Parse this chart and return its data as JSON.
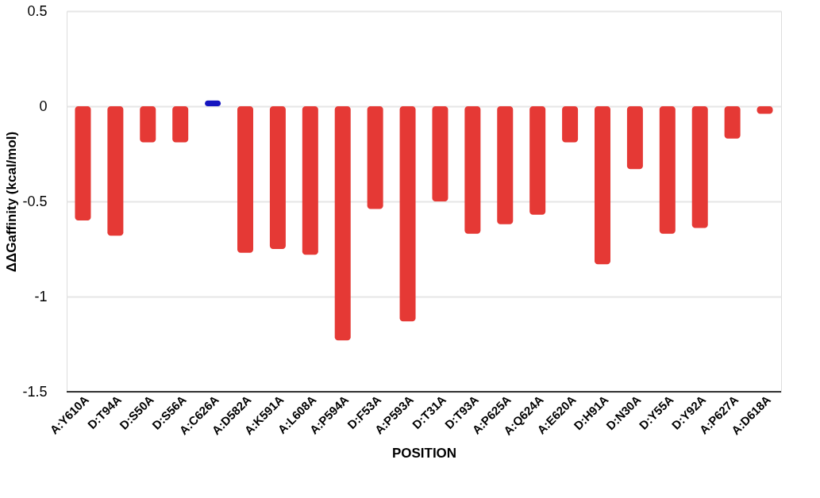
{
  "chart_data": {
    "type": "bar",
    "xlabel": "POSITION",
    "ylabel": "ΔΔGaffinity (kcal/mol)",
    "categories": [
      "A:Y610A",
      "D:T94A",
      "D:S50A",
      "D:S56A",
      "A:C626A",
      "A:D582A",
      "A:K591A",
      "A:L608A",
      "A:P594A",
      "D:F53A",
      "A:P593A",
      "D:T31A",
      "D:T93A",
      "A:P625A",
      "A:Q624A",
      "A:E620A",
      "D:H91A",
      "D:N30A",
      "D:Y55A",
      "D:Y92A",
      "A:P627A",
      "A:D618A"
    ],
    "values": [
      -0.6,
      -0.68,
      -0.19,
      -0.19,
      0.03,
      -0.77,
      -0.75,
      -0.78,
      -1.23,
      -0.54,
      -1.13,
      -0.5,
      -0.67,
      -0.62,
      -0.57,
      -0.19,
      -0.83,
      -0.33,
      -0.67,
      -0.64,
      -0.17,
      -0.04
    ],
    "colors": [
      "#e53935",
      "#e53935",
      "#e53935",
      "#e53935",
      "#1515c0",
      "#e53935",
      "#e53935",
      "#e53935",
      "#e53935",
      "#e53935",
      "#e53935",
      "#e53935",
      "#e53935",
      "#e53935",
      "#e53935",
      "#e53935",
      "#e53935",
      "#e53935",
      "#e53935",
      "#e53935",
      "#e53935",
      "#e53935"
    ],
    "ylim": [
      -1.5,
      0.5
    ],
    "yticks": [
      0.5,
      0,
      -0.5,
      -1,
      -1.5
    ],
    "grid": "y"
  }
}
